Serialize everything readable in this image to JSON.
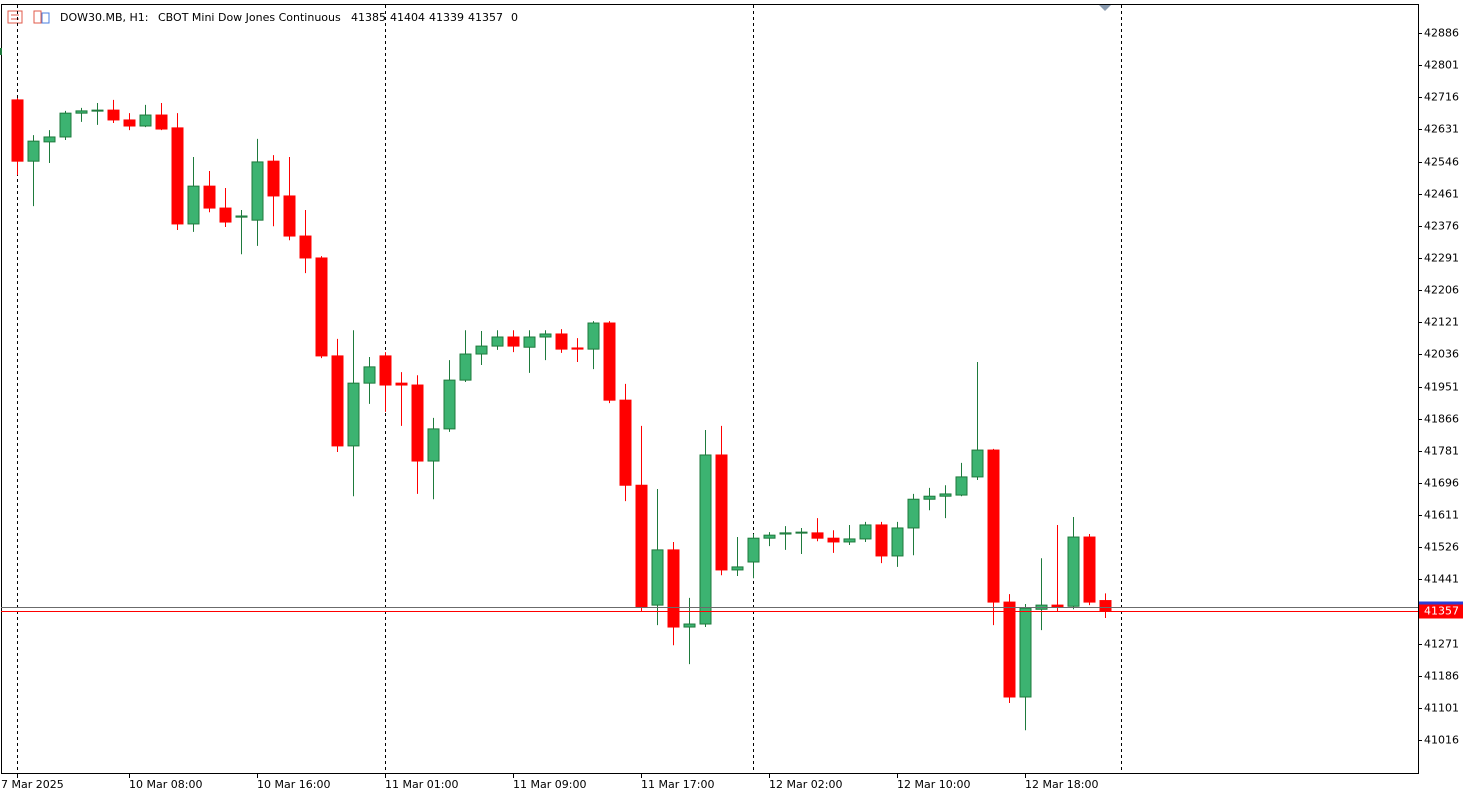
{
  "chart_data": {
    "type": "candlestick",
    "symbol": "DOW30.MB, H1:",
    "description": "CBOT Mini Dow Jones Continuous",
    "volume": 0,
    "categories": [
      "7 Mar 2025",
      null,
      null,
      null,
      null,
      null,
      null,
      "10 Mar 08:00",
      null,
      null,
      null,
      null,
      null,
      null,
      null,
      "10 Mar 16:00",
      null,
      null,
      null,
      null,
      null,
      null,
      null,
      "11 Mar 01:00",
      null,
      null,
      null,
      null,
      null,
      null,
      null,
      "11 Mar 09:00",
      null,
      null,
      null,
      null,
      null,
      null,
      null,
      "11 Mar 17:00",
      null,
      null,
      null,
      null,
      null,
      null,
      null,
      "12 Mar 02:00",
      null,
      null,
      null,
      null,
      null,
      null,
      null,
      "12 Mar 10:00",
      null,
      null,
      null,
      null,
      null,
      null,
      null,
      "12 Mar 18:00",
      null,
      null,
      null,
      null,
      null
    ],
    "open": [
      42709,
      42547,
      42598,
      42611,
      42674,
      42680,
      42682,
      42656,
      42640,
      42669,
      42635,
      42381,
      42481,
      42423,
      42399,
      42391,
      42547,
      42455,
      42349,
      42291,
      42032,
      41794,
      41960,
      42032,
      41960,
      41955,
      41754,
      41839,
      41968,
      42037,
      42058,
      42082,
      42055,
      42082,
      42090,
      42053,
      42050,
      42119,
      41915,
      41690,
      41373,
      41519,
      41315,
      41323,
      41770,
      41466,
      41487,
      41550,
      41561,
      41564,
      41564,
      41550,
      41540,
      41548,
      41585,
      41503,
      41577,
      41653,
      41661,
      41664,
      41712,
      41783,
      41381,
      41130,
      41362,
      41373,
      41370,
      41553,
      41385
    ],
    "high": [
      42714,
      42616,
      42629,
      42680,
      42688,
      42701,
      42709,
      42674,
      42696,
      42701,
      42674,
      42558,
      42521,
      42476,
      42418,
      42606,
      42563,
      42558,
      42418,
      42296,
      42077,
      42100,
      42029,
      42042,
      41989,
      41981,
      41868,
      42021,
      42100,
      42098,
      42100,
      42100,
      42100,
      42100,
      42103,
      42079,
      42124,
      42124,
      41958,
      41847,
      41680,
      41540,
      41392,
      41836,
      41847,
      41553,
      41561,
      41566,
      41582,
      41577,
      41603,
      41571,
      41585,
      41593,
      41593,
      41593,
      41667,
      41683,
      41690,
      41749,
      42016,
      41786,
      41402,
      41376,
      41497,
      41585,
      41606,
      41561,
      41404
    ],
    "low": [
      42510,
      42428,
      42542,
      42603,
      42651,
      42643,
      42648,
      42629,
      42637,
      42629,
      42365,
      42360,
      42412,
      42373,
      42301,
      42323,
      42375,
      42338,
      42251,
      42026,
      41778,
      41661,
      41905,
      41884,
      41847,
      41667,
      41653,
      41831,
      41963,
      42008,
      42048,
      42042,
      41987,
      42021,
      42040,
      42016,
      41997,
      41907,
      41648,
      41355,
      41320,
      41267,
      41217,
      41315,
      41452,
      41450,
      41444,
      41529,
      41519,
      41508,
      41542,
      41511,
      41532,
      41540,
      41484,
      41474,
      41505,
      41624,
      41603,
      41661,
      41704,
      41320,
      41114,
      41042,
      41307,
      41357,
      41362,
      41373,
      41339
    ],
    "close": [
      42547,
      42600,
      42611,
      42674,
      42680,
      42682,
      42656,
      42640,
      42669,
      42632,
      42381,
      42481,
      42423,
      42386,
      42402,
      42545,
      42455,
      42349,
      42291,
      42032,
      41794,
      41960,
      42003,
      41955,
      41955,
      41754,
      41839,
      41968,
      42037,
      42058,
      42082,
      42058,
      42082,
      42090,
      42050,
      42050,
      42119,
      41915,
      41690,
      41368,
      41519,
      41315,
      41323,
      41770,
      41466,
      41474,
      41550,
      41558,
      41564,
      41566,
      41550,
      41540,
      41548,
      41585,
      41503,
      41577,
      41653,
      41661,
      41667,
      41712,
      41783,
      41381,
      41130,
      41365,
      41373,
      41368,
      41553,
      41381,
      41357
    ],
    "up_color": "#3cb371",
    "down_color": "#ff0000",
    "ylim": [
      40929,
      42960
    ],
    "yticks": [
      42886,
      42801,
      42716,
      42631,
      42546,
      42461,
      42376,
      42291,
      42206,
      42121,
      42036,
      41951,
      41866,
      41781,
      41696,
      41611,
      41526,
      41441,
      41271,
      41186,
      41101,
      41016
    ],
    "last_price": 41357
  }
}
